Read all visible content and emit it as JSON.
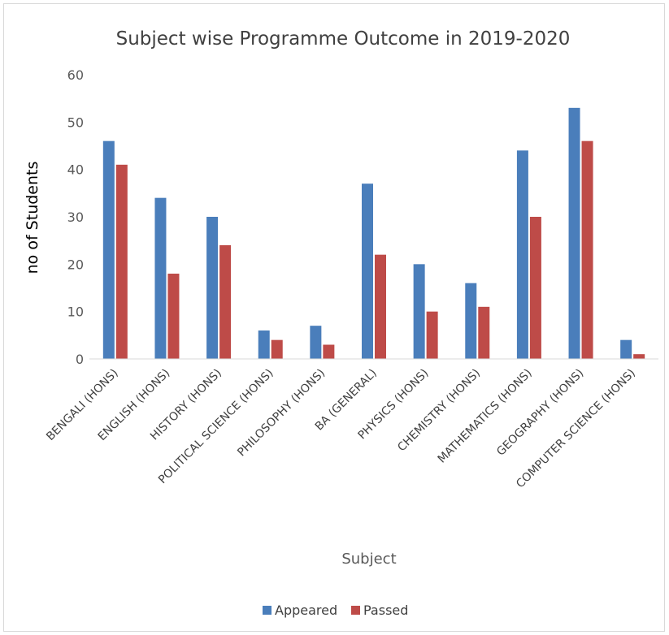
{
  "chart_data": {
    "type": "bar",
    "title": "Subject wise Programme Outcome in 2019-2020",
    "xlabel": "Subject",
    "ylabel": "no of Students",
    "ylim": [
      0,
      60
    ],
    "yticks": [
      0,
      10,
      20,
      30,
      40,
      50,
      60
    ],
    "grid": false,
    "legend_position": "bottom",
    "categories": [
      "BENGALI (HONS)",
      "ENGLISH (HONS)",
      "HISTORY (HONS)",
      "POLITICAL SCIENCE (HONS)",
      "PHILOSOPHY (HONS)",
      "BA (GENERAL)",
      "PHYSICS (HONS)",
      "CHEMISTRY (HONS)",
      "MATHEMATICS (HONS)",
      "GEOGRAPHY (HONS)",
      "COMPUTER SCIENCE (HONS)"
    ],
    "series": [
      {
        "name": "Appeared",
        "color": "#4a7ebb",
        "values": [
          46,
          34,
          30,
          6,
          7,
          37,
          20,
          16,
          44,
          53,
          4
        ]
      },
      {
        "name": "Passed",
        "color": "#be4b48",
        "values": [
          41,
          18,
          24,
          4,
          3,
          22,
          10,
          11,
          30,
          46,
          1
        ]
      }
    ]
  }
}
